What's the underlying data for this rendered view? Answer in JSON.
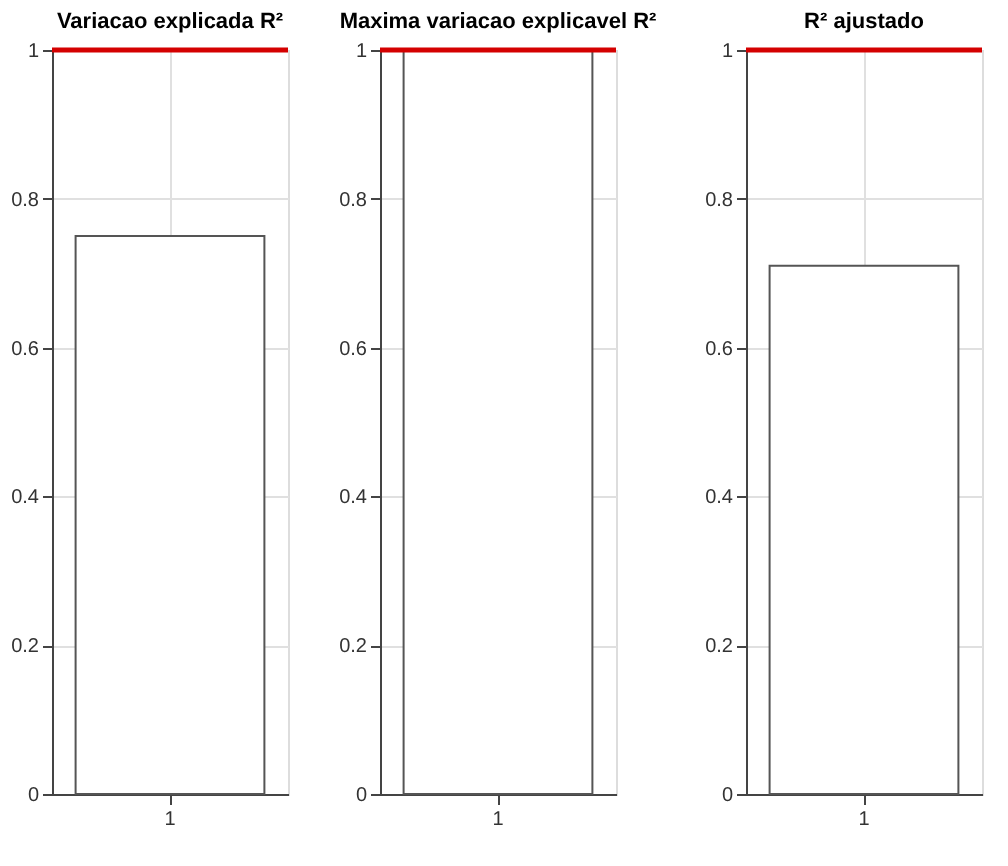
{
  "chart_data": [
    {
      "type": "bar",
      "title": "Variacao explicada R²",
      "categories": [
        "1"
      ],
      "values": [
        0.75
      ],
      "color": "#ffffff",
      "ylim": [
        0,
        1
      ],
      "yticks": [
        0,
        0.2,
        0.4,
        0.6,
        0.8,
        1
      ],
      "grid": true,
      "ref_lines": [
        {
          "axis": "y",
          "value": 1,
          "color": "#d40000"
        }
      ]
    },
    {
      "type": "bar",
      "title": "Maxima variacao explicavel R²",
      "categories": [
        "1"
      ],
      "values": [
        1
      ],
      "color": "#ffffff",
      "ylim": [
        0,
        1
      ],
      "yticks": [
        0,
        0.2,
        0.4,
        0.6,
        0.8,
        1
      ],
      "grid": true,
      "ref_lines": [
        {
          "axis": "y",
          "value": 1,
          "color": "#d40000"
        }
      ]
    },
    {
      "type": "bar",
      "title": "R² ajustado",
      "categories": [
        "1"
      ],
      "values": [
        0.71
      ],
      "color": "#ffffff",
      "ylim": [
        0,
        1
      ],
      "yticks": [
        0,
        0.2,
        0.4,
        0.6,
        0.8,
        1
      ],
      "grid": true,
      "ref_lines": [
        {
          "axis": "y",
          "value": 1,
          "color": "#d40000"
        }
      ]
    }
  ]
}
